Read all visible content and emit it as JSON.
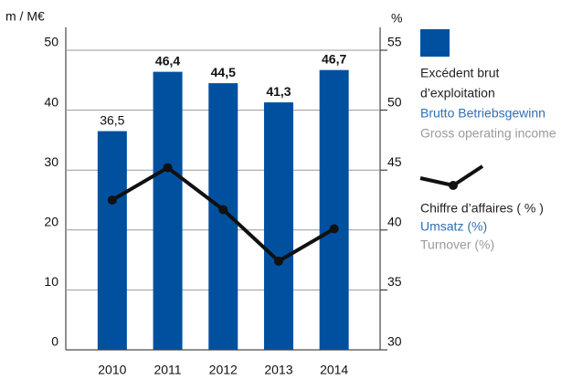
{
  "chart_data": {
    "type": "bar+line",
    "y_label": "m / M€",
    "y2_label": "%",
    "categories": [
      "2010",
      "2011",
      "2012",
      "2013",
      "2014"
    ],
    "ylim": [
      0,
      50
    ],
    "yticks": [
      0,
      10,
      20,
      30,
      40,
      50
    ],
    "y2lim": [
      30,
      55
    ],
    "y2ticks": [
      30,
      35,
      40,
      45,
      50,
      55
    ],
    "series": [
      {
        "name": [
          "Excédent brut",
          "d’exploitation",
          "Brutto Betriebsgewinn",
          "Gross operating income"
        ],
        "type": "bar",
        "color": "#0050a0",
        "values": [
          36.5,
          46.4,
          44.5,
          41.3,
          46.7
        ],
        "value_labels": [
          "36,5",
          "46,4",
          "44,5",
          "41,3",
          "46,7"
        ]
      },
      {
        "name": [
          "Chiffre d’affaires ( % )",
          "Umsatz (%)",
          "Turnover (%)"
        ],
        "type": "line",
        "axis": "y2",
        "color": "#111111",
        "values": [
          42.5,
          45.2,
          41.7,
          37.4,
          40.1
        ]
      }
    ]
  }
}
